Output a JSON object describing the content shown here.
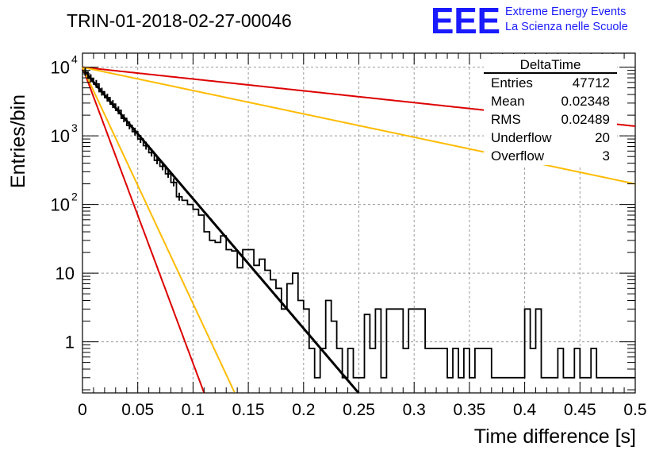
{
  "header": {
    "run_title": "TRIN-01-2018-02-27-00046",
    "logo_text": "EEE",
    "logo_line1": "Extreme Energy Events",
    "logo_line2": "La Scienza nelle Scuole",
    "logo_color": "#1a1aff"
  },
  "stats": {
    "title": "DeltaTime",
    "rows": [
      {
        "label": "Entries",
        "value": "47712"
      },
      {
        "label": "Mean",
        "value": "0.02348"
      },
      {
        "label": "RMS",
        "value": "0.02489"
      },
      {
        "label": "Underflow",
        "value": "20"
      },
      {
        "label": "Overflow",
        "value": "3"
      }
    ]
  },
  "chart_data": {
    "type": "line",
    "title": "TRIN-01-2018-02-27-00046",
    "xlabel": "Time difference [s]",
    "ylabel": "Entries/bin",
    "xlim": [
      0,
      0.5
    ],
    "ylim": [
      0.18,
      16000
    ],
    "yscale": "log",
    "grid": true,
    "xticks": [
      "0",
      "0.05",
      "0.1",
      "0.15",
      "0.2",
      "0.25",
      "0.3",
      "0.35",
      "0.4",
      "0.45",
      "0.5"
    ],
    "ytick_labels": [
      {
        "value": 1,
        "base": "1",
        "exp": ""
      },
      {
        "value": 10,
        "base": "10",
        "exp": ""
      },
      {
        "value": 100,
        "base": "10",
        "exp": "2"
      },
      {
        "value": 1000,
        "base": "10",
        "exp": "3"
      },
      {
        "value": 10000,
        "base": "10",
        "exp": "4"
      }
    ],
    "histogram": {
      "name": "DeltaTime",
      "bin_width": 0.005,
      "color": "#000000",
      "counts": [
        8500,
        6900,
        5700,
        4400,
        3600,
        2900,
        2350,
        1800,
        1420,
        1150,
        900,
        720,
        570,
        440,
        360,
        280,
        210,
        130,
        115,
        100,
        85,
        70,
        40,
        30,
        28,
        35,
        22,
        21,
        12,
        22,
        22,
        13,
        16,
        11,
        8,
        6,
        3,
        7,
        10,
        4,
        3,
        0.8,
        0.3,
        0.8,
        4,
        2,
        0.8,
        0.3,
        0.8,
        0.3,
        0.3,
        2.5,
        0.8,
        3,
        0.3,
        3,
        3,
        3,
        0.8,
        3,
        3,
        3,
        0.8,
        0.8,
        0.8,
        0.8,
        0.3,
        0.8,
        0.3,
        0.8,
        0.3,
        0.8,
        0.8,
        0.8,
        0.3,
        0.3,
        0.3,
        0.3,
        0.3,
        0.3,
        3,
        0.8,
        3,
        0.3,
        0.3,
        0.3,
        0.8,
        0.3,
        0.3,
        0.8,
        0.3,
        0.3,
        0.8,
        0.3,
        0.3,
        0.3,
        0.3,
        0.3,
        0.3,
        0.3
      ],
      "points": [
        {
          "x": 0.0025,
          "y": 8500
        },
        {
          "x": 0.0075,
          "y": 6900
        },
        {
          "x": 0.0125,
          "y": 5700
        },
        {
          "x": 0.0175,
          "y": 4400
        },
        {
          "x": 0.0225,
          "y": 3600
        },
        {
          "x": 0.0275,
          "y": 2900
        },
        {
          "x": 0.0325,
          "y": 2350
        },
        {
          "x": 0.0375,
          "y": 1800
        },
        {
          "x": 0.0425,
          "y": 1420
        },
        {
          "x": 0.0475,
          "y": 1150
        },
        {
          "x": 0.0525,
          "y": 900
        },
        {
          "x": 0.0575,
          "y": 720
        },
        {
          "x": 0.0625,
          "y": 570
        },
        {
          "x": 0.0675,
          "y": 440
        },
        {
          "x": 0.0725,
          "y": 360
        },
        {
          "x": 0.0775,
          "y": 280
        },
        {
          "x": 0.0825,
          "y": 210
        },
        {
          "x": 0.0875,
          "y": 130
        }
      ]
    },
    "series": [
      {
        "type": "exp",
        "color": "#000000",
        "amplitude": 9400,
        "slope": 43.5,
        "width": 3
      },
      {
        "type": "exp",
        "color": "#dd0000",
        "amplitude": 10000,
        "slope": 3.96,
        "width": 2
      },
      {
        "type": "exp",
        "color": "#ffbb00",
        "amplitude": 10000,
        "slope": 7.83,
        "width": 2
      },
      {
        "type": "exp",
        "color": "#dd0000",
        "amplitude": 10000,
        "slope": 99.3,
        "width": 2
      },
      {
        "type": "exp",
        "color": "#ffbb00",
        "amplitude": 10000,
        "slope": 79.3,
        "width": 2
      }
    ]
  }
}
